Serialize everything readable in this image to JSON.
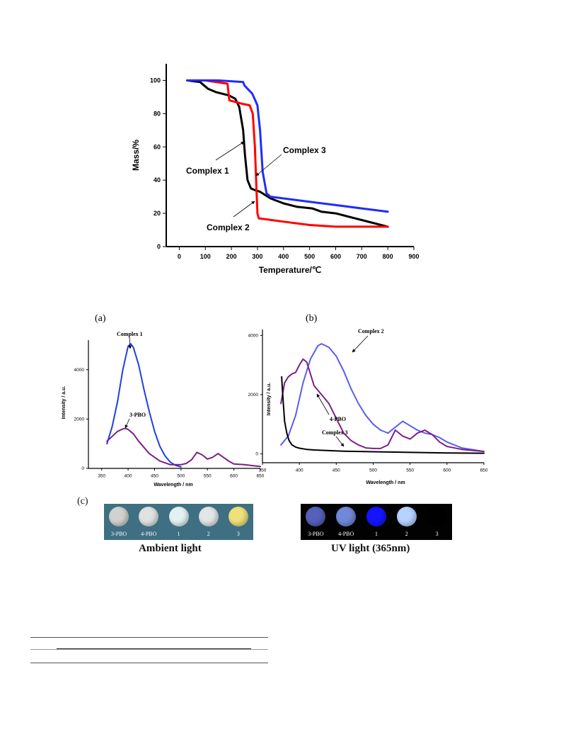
{
  "chart_data": [
    {
      "type": "line",
      "xlabel": "Temperature/℃",
      "ylabel": "Mass/%",
      "xlim": [
        -50,
        900
      ],
      "ylim": [
        0,
        110
      ],
      "xticks": [
        0,
        100,
        200,
        300,
        400,
        500,
        600,
        700,
        800,
        900
      ],
      "yticks": [
        0,
        20,
        40,
        60,
        80,
        100
      ],
      "grid": false,
      "series": [
        {
          "color": "#000000",
          "x": [
            30,
            80,
            110,
            140,
            190,
            215,
            230,
            245,
            252,
            262,
            275,
            290,
            310,
            350,
            400,
            450,
            510,
            545,
            600,
            700,
            800
          ],
          "y": [
            100,
            99,
            95,
            93,
            91,
            89,
            84,
            70,
            55,
            40,
            35,
            34,
            33,
            29,
            26,
            24,
            23,
            21,
            20,
            16,
            12
          ]
        },
        {
          "color": "#ff0000",
          "x": [
            30,
            100,
            185,
            192,
            240,
            270,
            282,
            290,
            296,
            300,
            305,
            400,
            500,
            600,
            700,
            800
          ],
          "y": [
            100,
            100,
            98,
            88,
            86,
            85,
            80,
            60,
            35,
            20,
            17,
            15,
            13,
            12,
            12,
            12
          ]
        },
        {
          "color": "#1e2cff",
          "x": [
            30,
            150,
            245,
            250,
            262,
            280,
            300,
            310,
            320,
            335,
            350,
            400,
            500,
            600,
            700,
            800
          ],
          "y": [
            100,
            100,
            99,
            97,
            95,
            92,
            85,
            70,
            45,
            32,
            30,
            29,
            27,
            25,
            23,
            21
          ]
        }
      ],
      "annotations": [
        "Complex 1",
        "Complex 2",
        "Complex 3"
      ]
    },
    {
      "panel": "(a)",
      "type": "line",
      "xlabel": "Wavelength / nm",
      "ylabel": "Intensity / a.u.",
      "xlim": [
        325,
        650
      ],
      "ylim": [
        0,
        5200
      ],
      "xticks": [
        350,
        400,
        450,
        500,
        550,
        600,
        650
      ],
      "yticks": [
        0,
        2000,
        4000
      ],
      "grid": false,
      "series": [
        {
          "color": "#1f3fe0",
          "x": [
            360,
            370,
            380,
            390,
            400,
            405,
            410,
            420,
            430,
            440,
            450,
            460,
            470,
            480,
            490,
            500
          ],
          "y": [
            1000,
            1700,
            2700,
            4000,
            4950,
            5050,
            4900,
            4200,
            3200,
            2300,
            1500,
            900,
            500,
            250,
            120,
            60
          ]
        },
        {
          "color": "#7d1f86",
          "x": [
            360,
            370,
            380,
            390,
            395,
            400,
            410,
            420,
            440,
            460,
            480,
            500,
            510,
            520,
            530,
            540,
            550,
            560,
            570,
            580,
            590,
            600,
            620,
            640,
            650
          ],
          "y": [
            1100,
            1300,
            1500,
            1600,
            1620,
            1580,
            1400,
            1100,
            600,
            300,
            150,
            150,
            200,
            350,
            650,
            550,
            380,
            450,
            600,
            450,
            300,
            180,
            150,
            100,
            80
          ]
        }
      ],
      "annotations": [
        "Complex 1",
        "3-PBO"
      ]
    },
    {
      "panel": "(b)",
      "type": "line",
      "xlabel": "Wavelength / nm",
      "ylabel": "Intensity / a.u.",
      "xlim": [
        350,
        650
      ],
      "ylim": [
        -300,
        4200
      ],
      "xticks": [
        350,
        400,
        450,
        500,
        550,
        600,
        650
      ],
      "yticks": [
        0,
        2000,
        4000
      ],
      "grid": false,
      "series": [
        {
          "color": "#5a5cf0",
          "x": [
            375,
            385,
            395,
            405,
            415,
            425,
            430,
            440,
            450,
            460,
            470,
            480,
            490,
            500,
            510,
            520,
            530,
            540,
            550,
            560,
            570,
            580,
            590,
            600,
            620,
            650
          ],
          "y": [
            300,
            600,
            1300,
            2400,
            3200,
            3650,
            3720,
            3600,
            3300,
            2800,
            2200,
            1700,
            1300,
            1000,
            800,
            700,
            900,
            1100,
            950,
            800,
            700,
            650,
            550,
            400,
            200,
            80
          ]
        },
        {
          "color": "#7d1f86",
          "x": [
            375,
            380,
            385,
            390,
            395,
            400,
            405,
            410,
            415,
            420,
            430,
            440,
            450,
            460,
            470,
            480,
            490,
            500,
            510,
            520,
            530,
            540,
            550,
            560,
            570,
            580,
            590,
            600,
            620,
            650
          ],
          "y": [
            1700,
            2400,
            2600,
            2700,
            2750,
            3000,
            3200,
            3100,
            2700,
            2300,
            2000,
            1700,
            1200,
            700,
            450,
            300,
            200,
            180,
            180,
            300,
            800,
            600,
            500,
            700,
            800,
            650,
            400,
            250,
            150,
            80
          ]
        },
        {
          "color": "#000000",
          "x": [
            376,
            378,
            380,
            383,
            386,
            390,
            395,
            400,
            410,
            420,
            440,
            460,
            480,
            500,
            550,
            600,
            650
          ],
          "y": [
            2600,
            1800,
            1100,
            700,
            450,
            300,
            230,
            190,
            150,
            130,
            110,
            90,
            80,
            70,
            50,
            30,
            20
          ]
        }
      ],
      "annotations": [
        "Complex 2",
        "4-PBO",
        "Complex 3"
      ]
    }
  ],
  "panel_c": {
    "letter": "(c)",
    "ambient": {
      "caption": "Ambient light",
      "labels": [
        "3-PBO",
        "4-PBO",
        "1",
        "2",
        "3"
      ],
      "dot_colors": [
        "#cfd2cf",
        "#dfe2e0",
        "#e2f2f2",
        "#e3e6e6",
        "#efe07a"
      ],
      "bg_color": "#3e6f82"
    },
    "uv": {
      "caption": "UV light  (365nm)",
      "labels": [
        "3-PBO",
        "4-PBO",
        "1",
        "2",
        "3"
      ],
      "dot_colors": [
        "#5560b8",
        "#6f88d8",
        "#1414ff",
        "#b6d2ff",
        "#000000"
      ],
      "bg_color": "#020203"
    }
  }
}
